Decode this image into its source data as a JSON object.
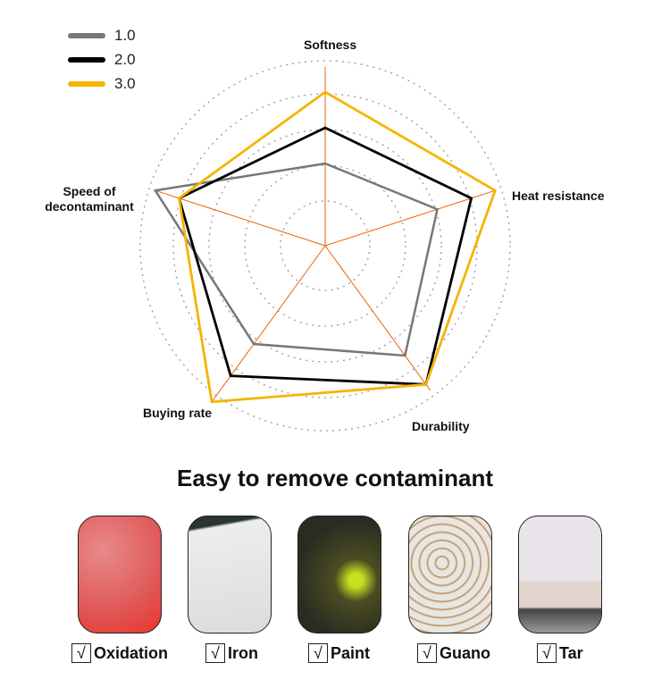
{
  "chart_data": {
    "type": "radar",
    "axes": [
      "Softness",
      "Heat resistance",
      "Durability",
      "Buying rate",
      "Speed of decontaminant"
    ],
    "range": [
      0,
      5
    ],
    "grid": "dotted circles",
    "legend_placement": "top-left",
    "series": [
      {
        "name": "1.0",
        "color": "#777777",
        "values": [
          2.3,
          3.3,
          3.8,
          3.4,
          5.0
        ]
      },
      {
        "name": "2.0",
        "color": "#000000",
        "values": [
          3.3,
          4.3,
          4.8,
          4.5,
          4.3
        ]
      },
      {
        "name": "3.0",
        "color": "#f5b400",
        "values": [
          4.3,
          5.0,
          4.8,
          5.4,
          4.3
        ]
      }
    ],
    "axis_color": "#e8620a"
  },
  "title": "Easy to remove contaminant",
  "items": [
    {
      "label": "Oxidation",
      "check": "√"
    },
    {
      "label": "Iron",
      "check": "√"
    },
    {
      "label": "Paint",
      "check": "√"
    },
    {
      "label": "Guano",
      "check": "√"
    },
    {
      "label": "Tar",
      "check": "√"
    }
  ]
}
